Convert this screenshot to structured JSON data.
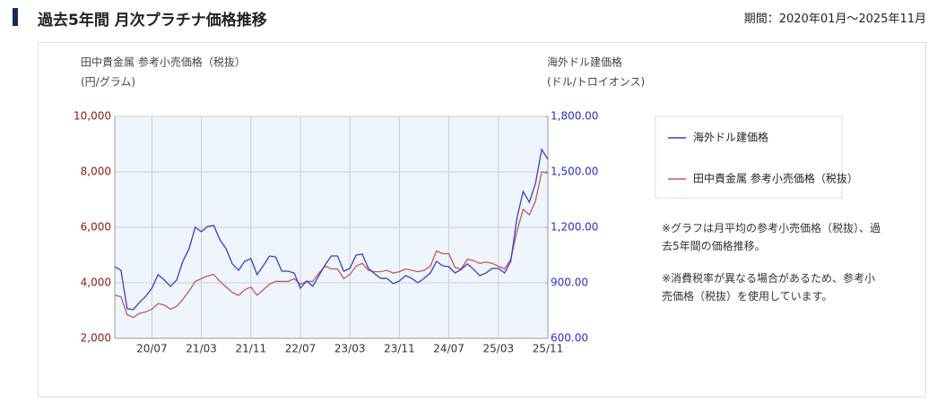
{
  "header": {
    "title": "過去5年間 月次プラチナ価格推移",
    "period": "期間：2020年01月～2025年11月"
  },
  "chart_data": {
    "type": "line",
    "y_label": "田中貴金属 参考小売価格（税抜）",
    "y_unit": "(円/グラム)",
    "y2_label": "海外ドル建価格",
    "y2_unit": "(ドル/トロイオンス)",
    "categories": [
      null,
      null,
      null,
      null,
      null,
      null,
      "20/07",
      null,
      null,
      null,
      null,
      null,
      null,
      null,
      "21/03",
      null,
      null,
      null,
      null,
      null,
      null,
      null,
      "21/11",
      null,
      null,
      null,
      null,
      null,
      null,
      null,
      "22/07",
      null,
      null,
      null,
      null,
      null,
      null,
      null,
      "23/03",
      null,
      null,
      null,
      null,
      null,
      null,
      null,
      "23/11",
      null,
      null,
      null,
      null,
      null,
      null,
      null,
      "24/07",
      null,
      null,
      null,
      null,
      null,
      null,
      null,
      "25/03",
      null,
      null,
      null,
      null,
      null,
      null,
      null,
      "25/11"
    ],
    "ylim": [
      2000,
      10000
    ],
    "yticks": [
      {
        "value": 2000,
        "label": "2,000"
      },
      {
        "value": 4000,
        "label": "4,000"
      },
      {
        "value": 6000,
        "label": "6,000"
      },
      {
        "value": 8000,
        "label": "8,000"
      },
      {
        "value": 10000,
        "label": "10,000"
      }
    ],
    "y2lim": [
      600,
      1800
    ],
    "y2ticks": [
      {
        "value": 600,
        "label": "600.00"
      },
      {
        "value": 900,
        "label": "900.00"
      },
      {
        "value": 1200,
        "label": "1,200.00"
      },
      {
        "value": 1500,
        "label": "1,500.00"
      },
      {
        "value": 1800,
        "label": "1,800.00"
      }
    ],
    "grid": true,
    "series": [
      {
        "name": "海外ドル建価格",
        "color": "#3b3fc4",
        "axis": "y2",
        "values": [
          987,
          968,
          760,
          755,
          794,
          827,
          871,
          944,
          915,
          881,
          915,
          1016,
          1084,
          1200,
          1176,
          1205,
          1210,
          1132,
          1084,
          1002,
          968,
          1016,
          1031,
          944,
          992,
          1045,
          1040,
          963,
          963,
          953,
          871,
          910,
          881,
          939,
          997,
          1045,
          1045,
          963,
          978,
          1050,
          1055,
          978,
          949,
          924,
          924,
          895,
          910,
          939,
          924,
          900,
          924,
          953,
          1016,
          992,
          987,
          953,
          973,
          1002,
          973,
          939,
          953,
          978,
          978,
          953,
          1016,
          1249,
          1394,
          1336,
          1437,
          1621,
          1568
        ]
      },
      {
        "name": "田中貴金属 参考小売価格（税抜）",
        "color": "#c9565a",
        "values": [
          3550,
          3500,
          2850,
          2750,
          2900,
          2950,
          3050,
          3250,
          3200,
          3050,
          3150,
          3400,
          3700,
          4050,
          4150,
          4250,
          4300,
          4050,
          3850,
          3650,
          3550,
          3750,
          3850,
          3550,
          3750,
          3950,
          4050,
          4050,
          4050,
          4150,
          3950,
          4050,
          4050,
          4350,
          4600,
          4500,
          4500,
          4150,
          4300,
          4600,
          4700,
          4450,
          4400,
          4400,
          4450,
          4350,
          4400,
          4500,
          4450,
          4400,
          4450,
          4600,
          5150,
          5050,
          5050,
          4550,
          4500,
          4850,
          4800,
          4700,
          4750,
          4700,
          4600,
          4500,
          4850,
          5850,
          6650,
          6450,
          6950,
          8000,
          7950
        ]
      }
    ]
  },
  "notes": [
    "※グラフは月平均の参考小売価格（税抜）、過去5年間の価格推移。",
    "※消費税率が異なる場合があるため、参考小売価格（税抜）を使用しています。"
  ]
}
